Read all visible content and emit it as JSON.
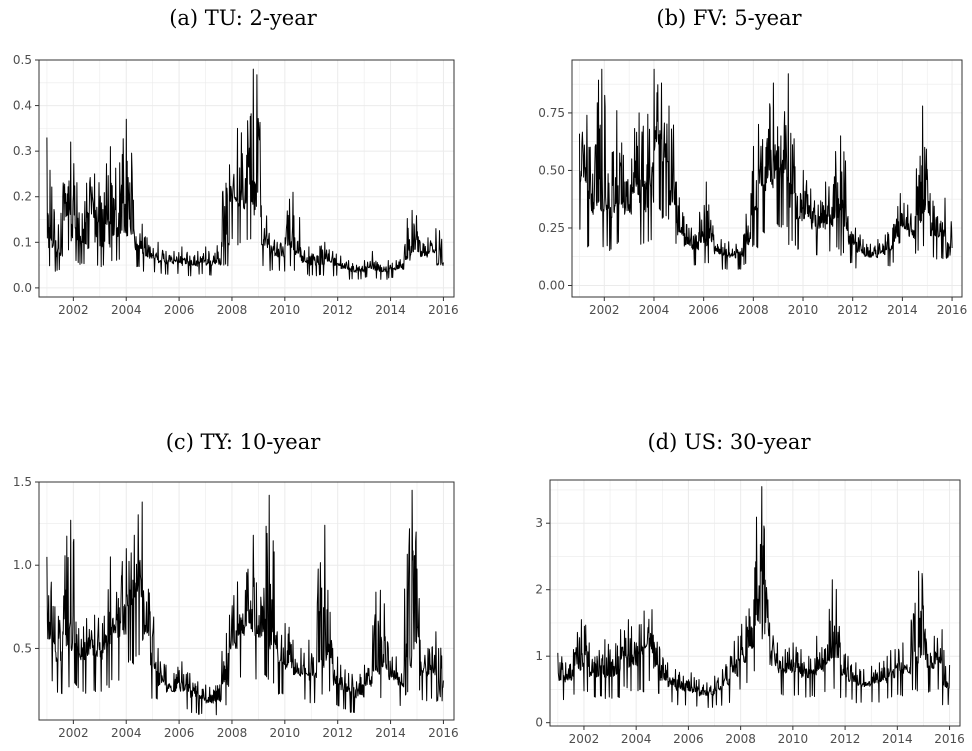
{
  "figure_titles": [
    "(a) TU: 2-year",
    "(b) FV: 5-year",
    "(c) TY: 10-year",
    "(d) US: 30-year"
  ],
  "style": {
    "line_color": "#000000",
    "grid_color": "#ebebeb",
    "panel_border": "#333333",
    "tick_text": "#4d4d4d"
  },
  "chart_data": [
    {
      "type": "line",
      "title": "(a) TU: 2-year",
      "xlabel": "",
      "ylabel": "",
      "xlim": [
        2000.7,
        2016.4
      ],
      "ylim": [
        -0.02,
        0.5
      ],
      "xticks": [
        2002,
        2004,
        2006,
        2008,
        2010,
        2012,
        2014,
        2016
      ],
      "yticks": [
        0.0,
        0.1,
        0.2,
        0.3,
        0.4,
        0.5
      ],
      "ytick_labels": [
        "0.0",
        "0.1",
        "0.2",
        "0.3",
        "0.4",
        "0.5"
      ],
      "grid": true,
      "legend": "none",
      "series": [
        {
          "x": [
            2001.0,
            2001.3,
            2001.6,
            2001.9,
            2002.2,
            2002.5,
            2002.8,
            2003.1,
            2003.4,
            2003.7,
            2004.0,
            2004.3,
            2004.6,
            2004.9,
            2005.2,
            2005.5,
            2005.8,
            2006.1,
            2006.4,
            2006.7,
            2007.0,
            2007.3,
            2007.6,
            2007.9,
            2008.2,
            2008.5,
            2008.8,
            2009.1,
            2009.4,
            2009.7,
            2010.0,
            2010.3,
            2010.6,
            2010.9,
            2011.2,
            2011.5,
            2011.8,
            2012.1,
            2012.4,
            2012.7,
            2013.0,
            2013.3,
            2013.6,
            2013.9,
            2014.2,
            2014.5,
            2014.8,
            2015.1,
            2015.4,
            2015.7,
            2016.0
          ],
          "y": [
            0.33,
            0.08,
            0.2,
            0.32,
            0.12,
            0.23,
            0.25,
            0.1,
            0.31,
            0.13,
            0.37,
            0.12,
            0.14,
            0.09,
            0.1,
            0.08,
            0.08,
            0.09,
            0.07,
            0.08,
            0.09,
            0.07,
            0.1,
            0.27,
            0.35,
            0.24,
            0.48,
            0.18,
            0.12,
            0.1,
            0.11,
            0.21,
            0.08,
            0.09,
            0.07,
            0.1,
            0.08,
            0.07,
            0.06,
            0.05,
            0.06,
            0.08,
            0.05,
            0.06,
            0.06,
            0.07,
            0.17,
            0.1,
            0.11,
            0.13,
            0.06
          ]
        }
      ]
    },
    {
      "type": "line",
      "title": "(b) FV: 5-year",
      "xlabel": "",
      "ylabel": "",
      "xlim": [
        2000.7,
        2016.4
      ],
      "ylim": [
        -0.05,
        0.98
      ],
      "xticks": [
        2002,
        2004,
        2006,
        2008,
        2010,
        2012,
        2014,
        2016
      ],
      "yticks": [
        0.0,
        0.25,
        0.5,
        0.75
      ],
      "ytick_labels": [
        "0.00",
        "0.25",
        "0.50",
        "0.75"
      ],
      "grid": true,
      "legend": "none",
      "series": [
        {
          "x": [
            2001.0,
            2001.3,
            2001.6,
            2001.9,
            2002.2,
            2002.5,
            2002.8,
            2003.1,
            2003.4,
            2003.7,
            2004.0,
            2004.3,
            2004.6,
            2004.9,
            2005.2,
            2005.5,
            2005.8,
            2006.1,
            2006.4,
            2006.7,
            2007.0,
            2007.3,
            2007.6,
            2007.9,
            2008.2,
            2008.5,
            2008.8,
            2009.1,
            2009.4,
            2009.7,
            2010.0,
            2010.3,
            2010.6,
            2010.9,
            2011.2,
            2011.5,
            2011.8,
            2012.1,
            2012.4,
            2012.7,
            2013.0,
            2013.3,
            2013.6,
            2013.9,
            2014.2,
            2014.5,
            2014.8,
            2015.1,
            2015.4,
            2015.7,
            2016.0
          ],
          "y": [
            0.66,
            0.74,
            0.4,
            0.94,
            0.35,
            0.76,
            0.45,
            0.55,
            0.75,
            0.42,
            0.94,
            0.88,
            0.78,
            0.45,
            0.3,
            0.25,
            0.23,
            0.45,
            0.22,
            0.2,
            0.19,
            0.18,
            0.22,
            0.4,
            0.7,
            0.6,
            0.88,
            0.65,
            0.92,
            0.4,
            0.5,
            0.42,
            0.35,
            0.45,
            0.38,
            0.65,
            0.3,
            0.25,
            0.2,
            0.18,
            0.2,
            0.22,
            0.25,
            0.4,
            0.35,
            0.3,
            0.78,
            0.4,
            0.3,
            0.38,
            0.12
          ]
        }
      ]
    },
    {
      "type": "line",
      "title": "(c) TY: 10-year",
      "xlabel": "",
      "ylabel": "",
      "xlim": [
        2000.7,
        2016.4
      ],
      "ylim": [
        0.07,
        1.5
      ],
      "xticks": [
        2002,
        2004,
        2006,
        2008,
        2010,
        2012,
        2014,
        2016
      ],
      "yticks": [
        0.5,
        1.0,
        1.5
      ],
      "ytick_labels": [
        "0.5",
        "1.0",
        "1.5"
      ],
      "grid": true,
      "legend": "none",
      "series": [
        {
          "x": [
            2001.0,
            2001.3,
            2001.6,
            2001.9,
            2002.2,
            2002.5,
            2002.8,
            2003.1,
            2003.4,
            2003.7,
            2004.0,
            2004.3,
            2004.6,
            2004.9,
            2005.2,
            2005.5,
            2005.8,
            2006.1,
            2006.4,
            2006.7,
            2007.0,
            2007.3,
            2007.6,
            2007.9,
            2008.2,
            2008.5,
            2008.8,
            2009.1,
            2009.4,
            2009.7,
            2010.0,
            2010.3,
            2010.6,
            2010.9,
            2011.2,
            2011.5,
            2011.8,
            2012.1,
            2012.4,
            2012.7,
            2013.0,
            2013.3,
            2013.6,
            2013.9,
            2014.2,
            2014.5,
            2014.8,
            2015.1,
            2015.4,
            2015.7,
            2016.0
          ],
          "y": [
            1.05,
            0.75,
            0.6,
            1.27,
            0.62,
            0.68,
            0.7,
            0.65,
            1.05,
            0.8,
            1.1,
            1.18,
            1.38,
            0.72,
            0.5,
            0.4,
            0.35,
            0.42,
            0.35,
            0.3,
            0.28,
            0.25,
            0.35,
            0.7,
            0.9,
            0.85,
            1.18,
            0.75,
            1.42,
            0.6,
            0.65,
            0.55,
            0.5,
            0.55,
            0.45,
            1.24,
            0.5,
            0.4,
            0.35,
            0.3,
            0.4,
            0.45,
            0.85,
            0.5,
            0.45,
            0.4,
            1.45,
            0.55,
            0.5,
            0.6,
            0.2
          ]
        }
      ]
    },
    {
      "type": "line",
      "title": "(d) US: 30-year",
      "xlabel": "",
      "ylabel": "",
      "xlim": [
        2000.7,
        2016.4
      ],
      "ylim": [
        -0.05,
        3.65
      ],
      "xticks": [
        2002,
        2004,
        2006,
        2008,
        2010,
        2012,
        2014,
        2016
      ],
      "yticks": [
        0,
        1,
        2,
        3
      ],
      "ytick_labels": [
        "0",
        "1",
        "2",
        "3"
      ],
      "grid": true,
      "legend": "none",
      "series": [
        {
          "x": [
            2001.0,
            2001.3,
            2001.6,
            2001.9,
            2002.2,
            2002.5,
            2002.8,
            2003.1,
            2003.4,
            2003.7,
            2004.0,
            2004.3,
            2004.6,
            2004.9,
            2005.2,
            2005.5,
            2005.8,
            2006.1,
            2006.4,
            2006.7,
            2007.0,
            2007.3,
            2007.6,
            2007.9,
            2008.2,
            2008.5,
            2008.8,
            2009.1,
            2009.4,
            2009.7,
            2010.0,
            2010.3,
            2010.6,
            2010.9,
            2011.2,
            2011.5,
            2011.8,
            2012.1,
            2012.4,
            2012.7,
            2013.0,
            2013.3,
            2013.6,
            2013.9,
            2014.2,
            2014.5,
            2014.8,
            2015.1,
            2015.4,
            2015.7,
            2016.0
          ],
          "y": [
            1.05,
            0.9,
            1.1,
            1.55,
            1.2,
            1.0,
            1.25,
            0.95,
            1.4,
            1.55,
            1.2,
            1.68,
            1.7,
            1.1,
            0.9,
            0.8,
            0.7,
            0.75,
            0.65,
            0.6,
            0.7,
            0.8,
            1.0,
            1.3,
            1.6,
            1.85,
            3.55,
            1.5,
            1.2,
            1.1,
            1.2,
            1.1,
            1.0,
            1.3,
            1.1,
            2.15,
            1.2,
            1.0,
            0.9,
            0.8,
            0.85,
            0.9,
            1.0,
            1.1,
            1.2,
            1.1,
            2.28,
            1.2,
            1.3,
            1.4,
            0.6
          ]
        }
      ]
    }
  ]
}
